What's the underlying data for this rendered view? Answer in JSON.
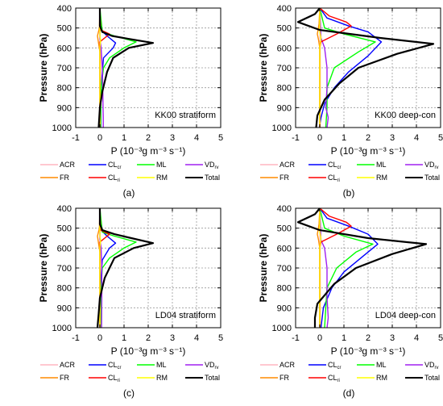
{
  "colors": {
    "ACR": "#ffb6c1",
    "CLcr": "#0000ff",
    "ML": "#00ff00",
    "VDrv": "#a020f0",
    "FR": "#ff8c00",
    "CLri": "#ff0000",
    "RM": "#ffff00",
    "Total": "#000000"
  },
  "chart_data": [
    {
      "type": "line",
      "panel_label": "(a)",
      "title": "KK00 stratiform",
      "xlabel": "P (10⁻³g m⁻³ s⁻¹)",
      "ylabel": "Pressure (hPa)",
      "xlim": [
        -1,
        5
      ],
      "ylim": [
        1000,
        400
      ],
      "y_reversed": true,
      "grid": "dashed",
      "legend": "below",
      "xticks": [
        "-1",
        "0",
        "1",
        "2",
        "3",
        "4",
        "5"
      ],
      "yticks": [
        "400",
        "500",
        "600",
        "700",
        "800",
        "900",
        "1000"
      ],
      "series": [
        {
          "name": "ACR",
          "key": "ACR",
          "x": [
            0,
            0,
            0.01,
            0.02,
            0.03,
            0.03,
            0.02,
            0.02
          ],
          "y": [
            400,
            500,
            550,
            600,
            700,
            800,
            900,
            1000
          ]
        },
        {
          "name": "CLcr",
          "key": "CLcr",
          "x": [
            0,
            0.05,
            0.3,
            0.65,
            0.55,
            0.15,
            0.05,
            0.04,
            0.04
          ],
          "y": [
            400,
            510,
            540,
            575,
            600,
            650,
            800,
            900,
            1000
          ]
        },
        {
          "name": "ML",
          "key": "ML",
          "x": [
            0,
            0.1,
            0.6,
            1.5,
            1.0,
            0.4,
            0.15,
            0.05,
            0.03
          ],
          "y": [
            400,
            520,
            540,
            570,
            600,
            650,
            700,
            800,
            1000
          ]
        },
        {
          "name": "VDrv",
          "key": "VDrv",
          "x": [
            0,
            0,
            0.05,
            0.1,
            0.12,
            0.13,
            0.14,
            0.14
          ],
          "y": [
            400,
            550,
            600,
            700,
            800,
            900,
            950,
            1000
          ]
        },
        {
          "name": "FR",
          "key": "FR",
          "x": [
            0,
            -0.02,
            -0.1,
            -0.05,
            0,
            0
          ],
          "y": [
            400,
            500,
            540,
            580,
            620,
            1000
          ]
        },
        {
          "name": "CLri",
          "key": "CLri",
          "x": [
            0,
            0.03,
            0.4,
            0.2,
            0,
            0
          ],
          "y": [
            400,
            510,
            530,
            550,
            570,
            1000
          ]
        },
        {
          "name": "RM",
          "key": "RM",
          "x": [
            0,
            0,
            0.03,
            0,
            0
          ],
          "y": [
            400,
            540,
            560,
            600,
            1000
          ]
        },
        {
          "name": "Total",
          "key": "Total",
          "x": [
            0,
            0,
            0.1,
            0.5,
            1.2,
            2.2,
            1.2,
            0.55,
            0.3,
            0.1,
            0,
            -0.05
          ],
          "y": [
            400,
            490,
            520,
            540,
            555,
            575,
            600,
            650,
            720,
            820,
            900,
            1000
          ]
        }
      ]
    },
    {
      "type": "line",
      "panel_label": "(b)",
      "title": "KK00 deep-con",
      "xlabel": "P (10⁻³g m⁻³ s⁻¹)",
      "ylabel": "Pressure (hPa)",
      "xlim": [
        -1,
        5
      ],
      "ylim": [
        1000,
        400
      ],
      "y_reversed": true,
      "grid": "dashed",
      "legend": "below",
      "xticks": [
        "-1",
        "0",
        "1",
        "2",
        "3",
        "4",
        "5"
      ],
      "yticks": [
        "400",
        "500",
        "600",
        "700",
        "800",
        "900",
        "1000"
      ],
      "series": [
        {
          "name": "ACR",
          "key": "ACR",
          "x": [
            0,
            0,
            0.01,
            0.02,
            0.02,
            0.02
          ],
          "y": [
            400,
            500,
            550,
            700,
            900,
            1000
          ]
        },
        {
          "name": "CLcr",
          "key": "CLcr",
          "x": [
            0,
            0.3,
            1.2,
            2.0,
            2.55,
            2.0,
            1.2,
            0.6,
            0.2,
            0.05,
            -0.02
          ],
          "y": [
            400,
            450,
            490,
            520,
            570,
            640,
            720,
            800,
            880,
            950,
            1000
          ]
        },
        {
          "name": "ML",
          "key": "ML",
          "x": [
            0,
            0.2,
            1.0,
            2.3,
            1.6,
            0.6,
            0.3,
            0.3,
            0.25
          ],
          "y": [
            400,
            500,
            530,
            570,
            620,
            700,
            800,
            900,
            1000
          ]
        },
        {
          "name": "VDrv",
          "key": "VDrv",
          "x": [
            0,
            0.05,
            0.2,
            0.3,
            0.3,
            0.25,
            0.35,
            0.3
          ],
          "y": [
            400,
            550,
            600,
            700,
            800,
            900,
            950,
            1000
          ]
        },
        {
          "name": "FR",
          "key": "FR",
          "x": [
            0,
            -0.03,
            -0.1,
            -0.05,
            0,
            0
          ],
          "y": [
            400,
            480,
            530,
            560,
            600,
            1000
          ]
        },
        {
          "name": "CLri",
          "key": "CLri",
          "x": [
            0,
            0.4,
            1.1,
            1.3,
            0.7,
            0.05,
            0,
            0
          ],
          "y": [
            400,
            440,
            470,
            490,
            530,
            570,
            600,
            1000
          ]
        },
        {
          "name": "RM",
          "key": "RM",
          "x": [
            0,
            0,
            0.05,
            0,
            0
          ],
          "y": [
            400,
            520,
            550,
            600,
            1000
          ]
        },
        {
          "name": "Total",
          "key": "Total",
          "x": [
            0,
            -0.2,
            -0.9,
            0,
            2.5,
            4.7,
            3.2,
            1.6,
            0.8,
            0.2,
            -0.1,
            -0.15
          ],
          "y": [
            400,
            430,
            470,
            510,
            550,
            580,
            630,
            700,
            780,
            860,
            940,
            1000
          ]
        }
      ]
    },
    {
      "type": "line",
      "panel_label": "(c)",
      "title": "LD04 stratiform",
      "xlabel": "P (10⁻³g m⁻³ s⁻¹)",
      "ylabel": "Pressure (hPa)",
      "xlim": [
        -1,
        5
      ],
      "ylim": [
        1000,
        400
      ],
      "y_reversed": true,
      "grid": "dashed",
      "legend": "below",
      "xticks": [
        "-1",
        "0",
        "1",
        "2",
        "3",
        "4",
        "5"
      ],
      "yticks": [
        "400",
        "500",
        "600",
        "700",
        "800",
        "900",
        "1000"
      ],
      "series": [
        {
          "name": "ACR",
          "key": "ACR",
          "x": [
            0,
            0,
            0.01,
            0.02,
            0.02
          ],
          "y": [
            400,
            500,
            600,
            800,
            1000
          ]
        },
        {
          "name": "CLcr",
          "key": "CLcr",
          "x": [
            0,
            0.05,
            0.3,
            0.65,
            0.4,
            0.1,
            0.02,
            0.01
          ],
          "y": [
            400,
            510,
            540,
            575,
            600,
            660,
            800,
            1000
          ]
        },
        {
          "name": "ML",
          "key": "ML",
          "x": [
            0,
            0.1,
            0.6,
            1.5,
            1.0,
            0.4,
            0.1,
            0.05,
            0.02
          ],
          "y": [
            400,
            520,
            540,
            570,
            600,
            650,
            700,
            800,
            1000
          ]
        },
        {
          "name": "VDrv",
          "key": "VDrv",
          "x": [
            0,
            0,
            0.05,
            0.08,
            0.08,
            0.07
          ],
          "y": [
            400,
            550,
            600,
            700,
            850,
            1000
          ]
        },
        {
          "name": "FR",
          "key": "FR",
          "x": [
            0,
            -0.02,
            -0.1,
            -0.05,
            0,
            0
          ],
          "y": [
            400,
            500,
            540,
            580,
            620,
            1000
          ]
        },
        {
          "name": "CLri",
          "key": "CLri",
          "x": [
            0,
            0.03,
            0.4,
            0.2,
            0,
            0
          ],
          "y": [
            400,
            510,
            530,
            550,
            570,
            1000
          ]
        },
        {
          "name": "RM",
          "key": "RM",
          "x": [
            0,
            0,
            0.03,
            0,
            0
          ],
          "y": [
            400,
            540,
            560,
            600,
            1000
          ]
        },
        {
          "name": "Total",
          "key": "Total",
          "x": [
            0,
            0,
            0.1,
            0.6,
            1.3,
            2.2,
            1.4,
            0.6,
            0.2,
            0,
            -0.05,
            -0.1
          ],
          "y": [
            400,
            480,
            510,
            530,
            550,
            575,
            600,
            650,
            750,
            850,
            930,
            1000
          ]
        }
      ]
    },
    {
      "type": "line",
      "panel_label": "(d)",
      "title": "LD04 deep-con",
      "xlabel": "P (10⁻³g m⁻³ s⁻¹)",
      "ylabel": "Pressure (hPa)",
      "xlim": [
        -1,
        5
      ],
      "ylim": [
        1000,
        400
      ],
      "y_reversed": true,
      "grid": "dashed",
      "legend": "below",
      "xticks": [
        "-1",
        "0",
        "1",
        "2",
        "3",
        "4",
        "5"
      ],
      "yticks": [
        "400",
        "500",
        "600",
        "700",
        "800",
        "900",
        "1000"
      ],
      "series": [
        {
          "name": "ACR",
          "key": "ACR",
          "x": [
            0,
            0,
            0.01,
            0.02,
            0.02
          ],
          "y": [
            400,
            500,
            600,
            800,
            1000
          ]
        },
        {
          "name": "CLcr",
          "key": "CLcr",
          "x": [
            0,
            0.3,
            1.2,
            2.0,
            2.4,
            1.8,
            1.0,
            0.5,
            0.15,
            0.05
          ],
          "y": [
            400,
            450,
            490,
            530,
            580,
            640,
            720,
            800,
            900,
            1000
          ]
        },
        {
          "name": "ML",
          "key": "ML",
          "x": [
            0,
            0.2,
            1.0,
            2.2,
            1.5,
            0.7,
            0.3,
            0.25,
            0.2
          ],
          "y": [
            400,
            500,
            540,
            580,
            620,
            700,
            800,
            900,
            1000
          ]
        },
        {
          "name": "VDrv",
          "key": "VDrv",
          "x": [
            0,
            0.05,
            0.2,
            0.3,
            0.3,
            0.35,
            0.3
          ],
          "y": [
            400,
            560,
            600,
            700,
            850,
            950,
            1000
          ]
        },
        {
          "name": "FR",
          "key": "FR",
          "x": [
            0,
            -0.03,
            -0.1,
            -0.05,
            0,
            0
          ],
          "y": [
            400,
            480,
            530,
            560,
            600,
            1000
          ]
        },
        {
          "name": "CLri",
          "key": "CLri",
          "x": [
            0,
            0.4,
            1.1,
            1.3,
            0.7,
            0.05,
            0,
            0
          ],
          "y": [
            400,
            440,
            470,
            490,
            530,
            570,
            600,
            1000
          ]
        },
        {
          "name": "RM",
          "key": "RM",
          "x": [
            0,
            0,
            0.05,
            0,
            0
          ],
          "y": [
            400,
            520,
            550,
            600,
            1000
          ]
        },
        {
          "name": "Total",
          "key": "Total",
          "x": [
            0,
            -0.2,
            -0.9,
            0,
            2.0,
            4.4,
            3.0,
            1.5,
            0.6,
            -0.1,
            -0.2,
            -0.2
          ],
          "y": [
            400,
            430,
            470,
            510,
            550,
            580,
            630,
            700,
            780,
            880,
            950,
            1000
          ]
        }
      ]
    }
  ],
  "legend": {
    "items": [
      {
        "key": "ACR",
        "label": "ACR",
        "label_main": "ACR",
        "label_sub": ""
      },
      {
        "key": "CLcr",
        "label": "CLcr",
        "label_main": "CL",
        "label_sub": "cr"
      },
      {
        "key": "ML",
        "label": "ML",
        "label_main": "ML",
        "label_sub": ""
      },
      {
        "key": "VDrv",
        "label": "VDrv",
        "label_main": "VD",
        "label_sub": "rv"
      },
      {
        "key": "FR",
        "label": "FR",
        "label_main": "FR",
        "label_sub": ""
      },
      {
        "key": "CLri",
        "label": "CLri",
        "label_main": "CL",
        "label_sub": "ri"
      },
      {
        "key": "RM",
        "label": "RM",
        "label_main": "RM",
        "label_sub": ""
      },
      {
        "key": "Total",
        "label": "Total",
        "label_main": "Total",
        "label_sub": ""
      }
    ]
  }
}
